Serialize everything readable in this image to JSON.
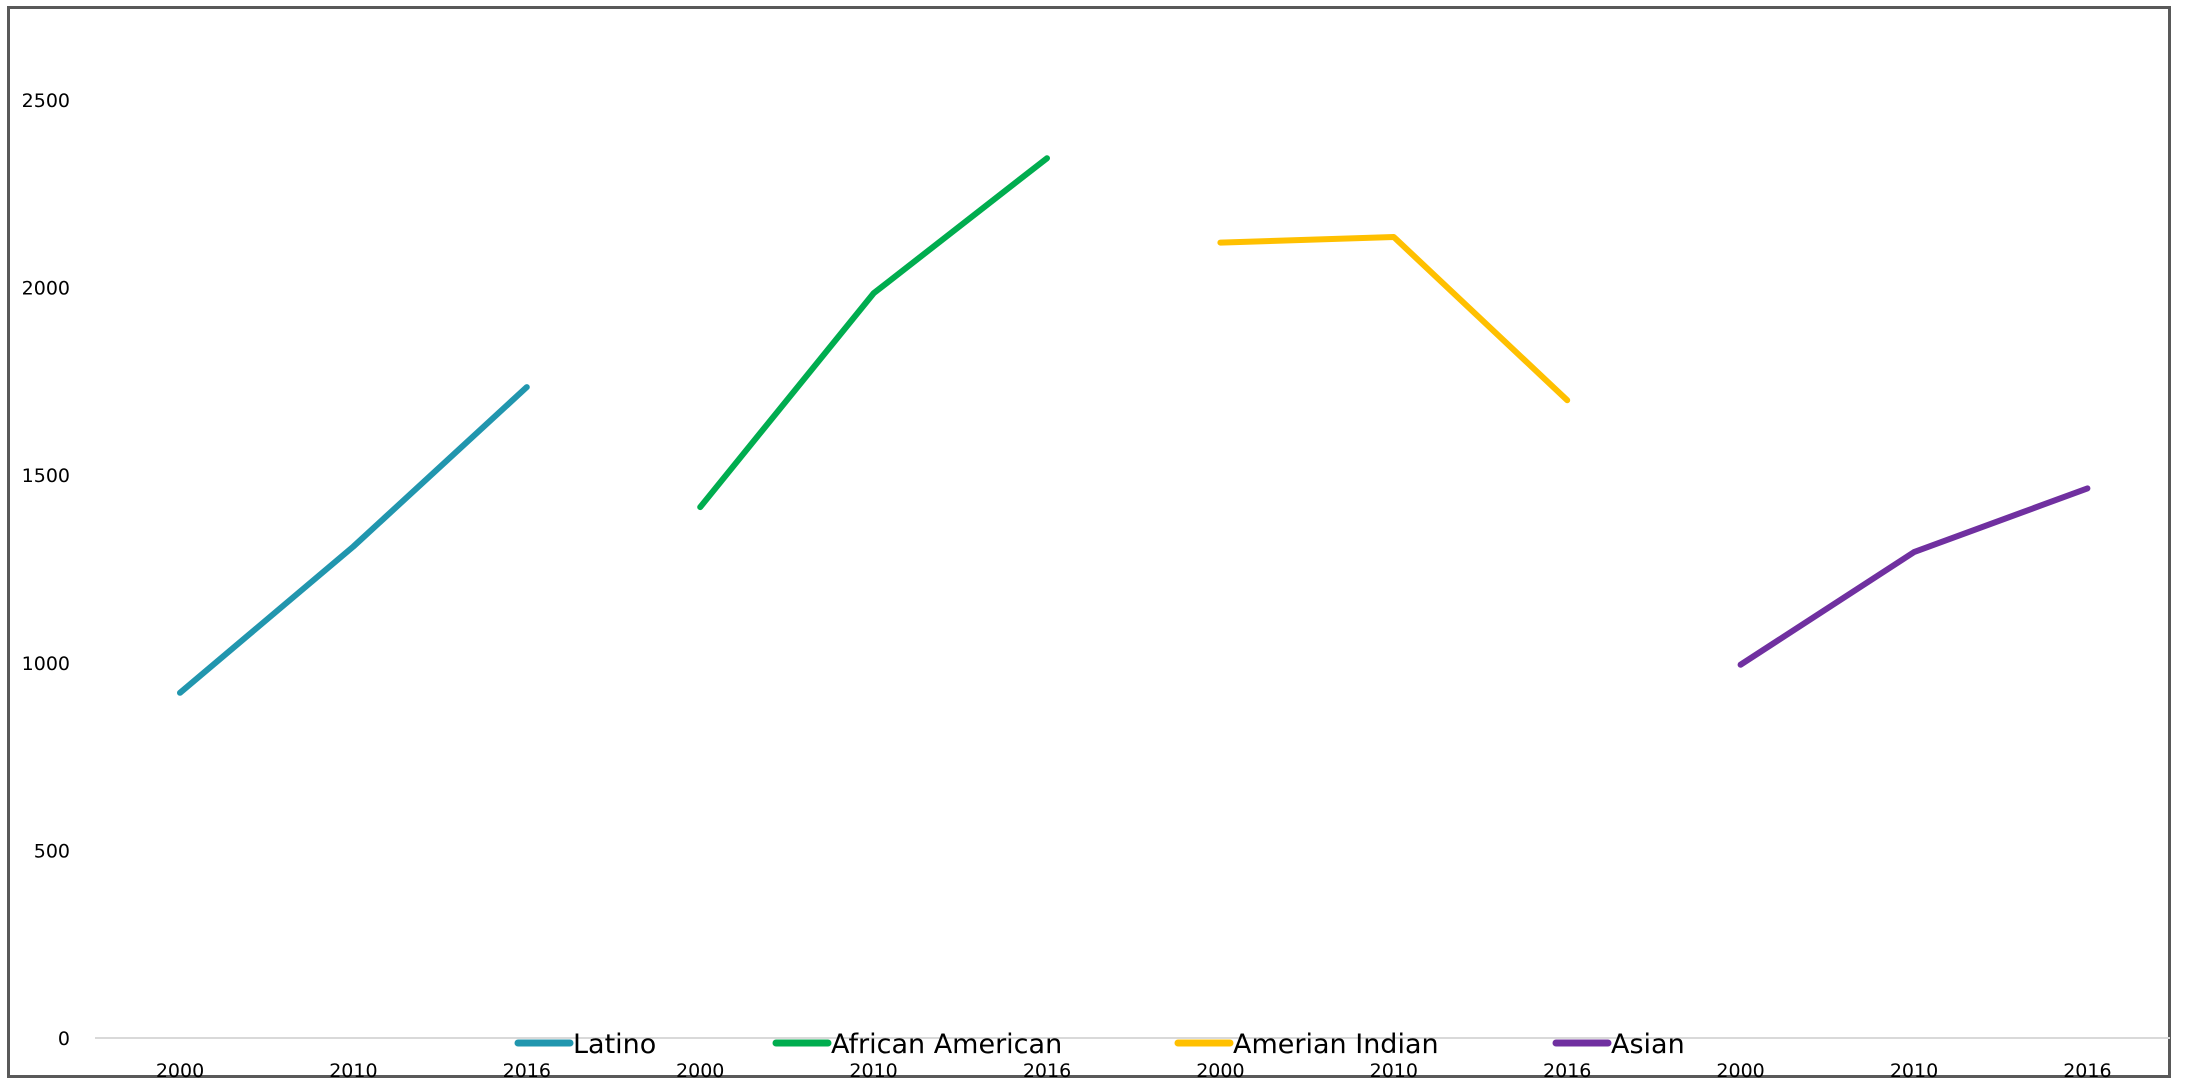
{
  "chart_data": {
    "type": "line",
    "title": "",
    "xlabel": "",
    "ylabel": "",
    "ylim": [
      0,
      2700
    ],
    "yticks": [
      0,
      500,
      1000,
      1500,
      2000,
      2500
    ],
    "grid": false,
    "legend_position": "bottom",
    "x": [
      "2000",
      "2010",
      "2016",
      "2000",
      "2010",
      "2016",
      "2000",
      "2010",
      "2016",
      "2000",
      "2010",
      "2016"
    ],
    "series": [
      {
        "name": "Latino",
        "color": "#2196AE",
        "values": [
          920,
          1310,
          1735,
          null,
          null,
          null,
          null,
          null,
          null,
          null,
          null,
          null
        ]
      },
      {
        "name": "African American",
        "color": "#00AD4F",
        "values": [
          null,
          null,
          null,
          1415,
          1985,
          2345,
          null,
          null,
          null,
          null,
          null,
          null
        ]
      },
      {
        "name": "Amerian Indian",
        "color": "#FFC000",
        "values": [
          null,
          null,
          null,
          null,
          null,
          null,
          2120,
          2135,
          1700,
          null,
          null,
          null
        ]
      },
      {
        "name": "Asian",
        "color": "#7030A0",
        "values": [
          null,
          null,
          null,
          null,
          null,
          null,
          null,
          null,
          null,
          995,
          1295,
          1465
        ]
      }
    ]
  }
}
